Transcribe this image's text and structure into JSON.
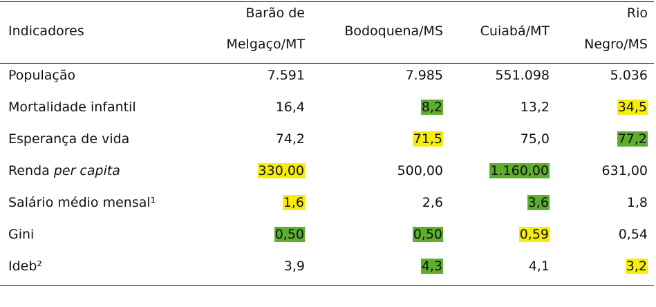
{
  "colors": {
    "yellow": "#f7ec0c",
    "green": "#5dad2f"
  },
  "header": {
    "indicadores": "Indicadores",
    "col1_line1": "Barão de",
    "col1_line2": "Melgaço/MT",
    "col2": "Bodoquena/MS",
    "col3": "Cuiabá/MT",
    "col4_line1": "Rio",
    "col4_line2": "Negro/MS"
  },
  "rows": [
    {
      "label": "População",
      "v1": "7.591",
      "v2": "7.985",
      "v3": "551.098",
      "v4": "5.036"
    },
    {
      "label": "Mortalidade infantil",
      "v1": "16,4",
      "v2": "8,2",
      "v3": "13,2",
      "v4": "34,5",
      "h2": "green",
      "h4": "yellow"
    },
    {
      "label": "Esperança de vida",
      "v1": "74,2",
      "v2": "71,5",
      "v3": "75,0",
      "v4": "77,2",
      "h2": "yellow",
      "h4": "green"
    },
    {
      "label_a": "Renda ",
      "label_b": "per capita",
      "v1": "330,00",
      "v2": "500,00",
      "v3": "1.160,00",
      "v4": "631,00",
      "h1": "yellow",
      "h3": "green"
    },
    {
      "label": "Salário médio mensal¹",
      "v1": "1,6",
      "v2": "2,6",
      "v3": "3,6",
      "v4": "1,8",
      "h1": "yellow",
      "h3": "green"
    },
    {
      "label": "Gini",
      "v1": "0,50",
      "v2": "0,50",
      "v3": "0,59",
      "v4": "0,54",
      "h1": "green",
      "h2": "green",
      "h3": "yellow"
    },
    {
      "label": "Ideb²",
      "v1": "3,9",
      "v2": "4,3",
      "v3": "4,1",
      "v4": "3,2",
      "h2": "green",
      "h4": "yellow"
    }
  ]
}
